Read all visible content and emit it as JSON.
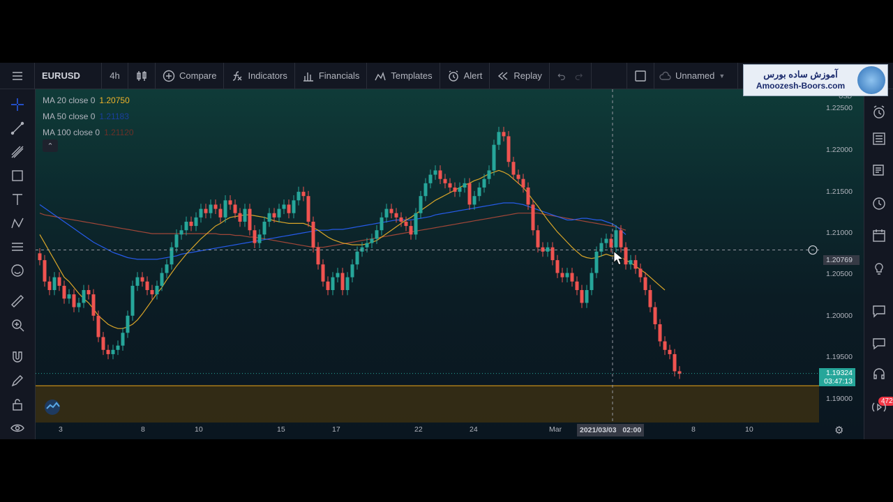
{
  "toolbar": {
    "symbol": "EURUSD",
    "interval": "4h",
    "compare": "Compare",
    "indicators": "Indicators",
    "financials": "Financials",
    "templates": "Templates",
    "alert": "Alert",
    "replay": "Replay",
    "layout_name": "Unnamed"
  },
  "banner": {
    "line1": "آموزش ساده بورس",
    "line2": "Amoozesh-Boors.com"
  },
  "legend": [
    {
      "label": "MA 20 close 0",
      "value": "1.20750",
      "color": "#f0b429"
    },
    {
      "label": "MA 50 close 0",
      "value": "1.21183",
      "color": "#2962ff"
    },
    {
      "label": "MA 100 close 0",
      "value": "1.21120",
      "color": "#b04a3a"
    }
  ],
  "price_axis": {
    "currency": "USD",
    "ticks": [
      "1.22500",
      "1.22000",
      "1.21500",
      "1.21000",
      "1.20500",
      "1.20000",
      "1.19500",
      "1.19000"
    ],
    "crosshair_price": "1.20769",
    "last_price": "1.19324",
    "countdown": "03:47:13"
  },
  "time_axis": {
    "ticks": [
      "3",
      "8",
      "10",
      "15",
      "17",
      "22",
      "24",
      "Mar",
      "8",
      "10"
    ],
    "crosshair_date": "2021/03/03",
    "crosshair_time": "02:00"
  },
  "notifications_count": "472",
  "colors": {
    "up": "#26a69a",
    "down": "#ef5350",
    "ma20": "#f0b429",
    "ma50": "#2962ff",
    "ma100": "#b04a3a",
    "background": "#131722"
  },
  "chart_data": {
    "type": "candlestick",
    "symbol": "EURUSD",
    "interval": "4h",
    "ylim": [
      1.1875,
      1.2265
    ],
    "close": [
      1.2065,
      1.204,
      1.203,
      1.2045,
      1.2035,
      1.202,
      1.2025,
      1.201,
      1.2015,
      1.203,
      1.2025,
      1.2,
      1.1975,
      1.196,
      1.1955,
      1.196,
      1.1965,
      1.198,
      1.2,
      1.2035,
      1.2045,
      1.204,
      1.203,
      1.2025,
      1.2035,
      1.205,
      1.206,
      1.208,
      1.2095,
      1.21,
      1.211,
      1.2105,
      1.2115,
      1.2125,
      1.212,
      1.213,
      1.2125,
      1.2115,
      1.2135,
      1.213,
      1.212,
      1.211,
      1.2125,
      1.21,
      1.2085,
      1.2095,
      1.211,
      1.212,
      1.2115,
      1.2125,
      1.213,
      1.212,
      1.2135,
      1.2145,
      1.214,
      1.211,
      1.208,
      1.206,
      1.204,
      1.203,
      1.2045,
      1.205,
      1.203,
      1.2045,
      1.206,
      1.2075,
      1.208,
      1.2085,
      1.209,
      1.21,
      1.2115,
      1.2125,
      1.212,
      1.2115,
      1.211,
      1.2105,
      1.2095,
      1.212,
      1.214,
      1.2155,
      1.2165,
      1.217,
      1.216,
      1.2155,
      1.215,
      1.2145,
      1.215,
      1.2155,
      1.213,
      1.214,
      1.215,
      1.216,
      1.217,
      1.22,
      1.2215,
      1.221,
      1.218,
      1.2165,
      1.216,
      1.215,
      1.213,
      1.21,
      1.208,
      1.2075,
      1.208,
      1.2065,
      1.205,
      1.2045,
      1.205,
      1.204,
      1.203,
      1.2015,
      1.203,
      1.205,
      1.2075,
      1.2085,
      1.209,
      1.208,
      1.21,
      1.208,
      1.206,
      1.2065,
      1.2055,
      1.2045,
      1.203,
      1.201,
      1.199,
      1.197,
      1.196,
      1.1955,
      1.1935,
      1.1932
    ],
    "ma20": [
      1.2095,
      1.2085,
      1.2075,
      1.2065,
      1.2055,
      1.2045,
      1.204,
      1.2033,
      1.2026,
      1.202,
      1.2015,
      1.2008,
      1.2,
      1.1995,
      1.199,
      1.1987,
      1.1985,
      1.1985,
      1.1987,
      1.199,
      1.1995,
      1.2002,
      1.201,
      1.2018,
      1.2026,
      1.2033,
      1.2042,
      1.205,
      1.2058,
      1.2065,
      1.2072,
      1.2078,
      1.2084,
      1.209,
      1.2095,
      1.21,
      1.2105,
      1.2108,
      1.2112,
      1.2115,
      1.2116,
      1.2117,
      1.2118,
      1.2118,
      1.2117,
      1.2116,
      1.2115,
      1.2113,
      1.2111,
      1.211,
      1.2109,
      1.2108,
      1.2108,
      1.2108,
      1.2108,
      1.2106,
      1.2103,
      1.21,
      1.2096,
      1.2092,
      1.2089,
      1.2087,
      1.2085,
      1.2084,
      1.2083,
      1.2083,
      1.2083,
      1.2084,
      1.2086,
      1.2088,
      1.2092,
      1.2096,
      1.21,
      1.2104,
      1.2108,
      1.2112,
      1.2115,
      1.2119,
      1.2123,
      1.2127,
      1.2131,
      1.2135,
      1.2138,
      1.2141,
      1.2144,
      1.2147,
      1.215,
      1.2153,
      1.2155,
      1.2158,
      1.216,
      1.2163,
      1.2166,
      1.2168,
      1.217,
      1.2168,
      1.2165,
      1.216,
      1.2155,
      1.215,
      1.2143,
      1.2135,
      1.2128,
      1.212,
      1.2112,
      1.2105,
      1.2098,
      1.2092,
      1.2086,
      1.208,
      1.2075,
      1.207,
      1.2068,
      1.2067,
      1.2068,
      1.207,
      1.2072,
      1.207,
      1.207,
      1.2068,
      1.2065,
      1.2062,
      1.2058,
      1.2054,
      1.205,
      1.2045,
      1.204,
      1.2035,
      1.203
    ],
    "ma50": [
      1.213,
      1.2126,
      1.2122,
      1.2118,
      1.2114,
      1.211,
      1.2106,
      1.2102,
      1.2098,
      1.2094,
      1.209,
      1.2086,
      1.2083,
      1.208,
      1.2077,
      1.2074,
      1.2072,
      1.207,
      1.2068,
      1.2067,
      1.2066,
      1.2066,
      1.2066,
      1.2066,
      1.2066,
      1.2067,
      1.2068,
      1.2069,
      1.207,
      1.2072,
      1.2073,
      1.2074,
      1.2075,
      1.2076,
      1.2077,
      1.2078,
      1.2079,
      1.208,
      1.2081,
      1.2082,
      1.2083,
      1.2084,
      1.2085,
      1.2086,
      1.2087,
      1.2088,
      1.2089,
      1.209,
      1.2091,
      1.2092,
      1.2093,
      1.2094,
      1.2095,
      1.2096,
      1.2097,
      1.2098,
      1.2099,
      1.21,
      1.21,
      1.21,
      1.2101,
      1.2101,
      1.2101,
      1.2102,
      1.2103,
      1.2104,
      1.2105,
      1.2106,
      1.2107,
      1.2108,
      1.2109,
      1.211,
      1.2111,
      1.2112,
      1.2112,
      1.2112,
      1.2112,
      1.2113,
      1.2114,
      1.2115,
      1.2116,
      1.2118,
      1.2119,
      1.212,
      1.2121,
      1.2122,
      1.2123,
      1.2124,
      1.2125,
      1.2126,
      1.2127,
      1.2128,
      1.2129,
      1.213,
      1.2131,
      1.2132,
      1.2132,
      1.2132,
      1.2131,
      1.213,
      1.2128,
      1.2126,
      1.2124,
      1.2122,
      1.212,
      1.2118,
      1.2116,
      1.2114,
      1.2112,
      1.2112,
      1.2113,
      1.2114,
      1.2114,
      1.2113,
      1.2112,
      1.2112,
      1.211,
      1.2108,
      1.2105,
      1.21,
      1.2095,
      null,
      null,
      null,
      null,
      null,
      null,
      null,
      null,
      null,
      null,
      null
    ],
    "ma100": [
      1.212,
      1.2118,
      1.2117,
      1.2116,
      1.2115,
      1.2114,
      1.2113,
      1.2112,
      1.2111,
      1.211,
      1.2109,
      1.2108,
      1.2107,
      1.2106,
      1.2105,
      1.2104,
      1.2103,
      1.2102,
      1.2101,
      1.21,
      1.2099,
      1.2098,
      1.2097,
      1.2096,
      1.2096,
      1.2096,
      1.2096,
      1.2096,
      1.2096,
      1.2096,
      1.2096,
      1.2096,
      1.2096,
      1.2096,
      1.2096,
      1.2096,
      1.2096,
      1.2095,
      1.2095,
      1.2095,
      1.2094,
      1.2094,
      1.2093,
      1.2092,
      1.2092,
      1.2091,
      1.209,
      1.2089,
      1.2088,
      1.2087,
      1.2086,
      1.2085,
      1.2084,
      1.2083,
      1.2082,
      1.2081,
      1.208,
      1.208,
      1.208,
      1.2081,
      1.2082,
      1.2083,
      1.2084,
      1.2085,
      1.2086,
      1.2087,
      1.2088,
      1.2089,
      1.209,
      1.2091,
      1.2092,
      1.2093,
      1.2094,
      1.2095,
      1.2096,
      1.2097,
      1.2098,
      1.2099,
      1.21,
      1.2101,
      1.2102,
      1.2103,
      1.2104,
      1.2105,
      1.2106,
      1.2107,
      1.2108,
      1.2109,
      1.211,
      1.2111,
      1.2112,
      1.2113,
      1.2114,
      1.2115,
      1.2116,
      1.2117,
      1.2118,
      1.2119,
      1.212,
      1.212,
      1.212,
      1.212,
      1.212,
      1.2119,
      1.2118,
      1.2117,
      1.2116,
      1.2115,
      1.2114,
      1.2113,
      1.2112,
      1.2111,
      1.211,
      1.2109,
      1.2108,
      1.2107,
      1.2106,
      1.2105,
      1.2104,
      1.2102,
      1.21,
      null,
      null,
      null,
      null,
      null,
      null,
      null,
      null,
      null,
      null,
      null,
      null
    ]
  }
}
